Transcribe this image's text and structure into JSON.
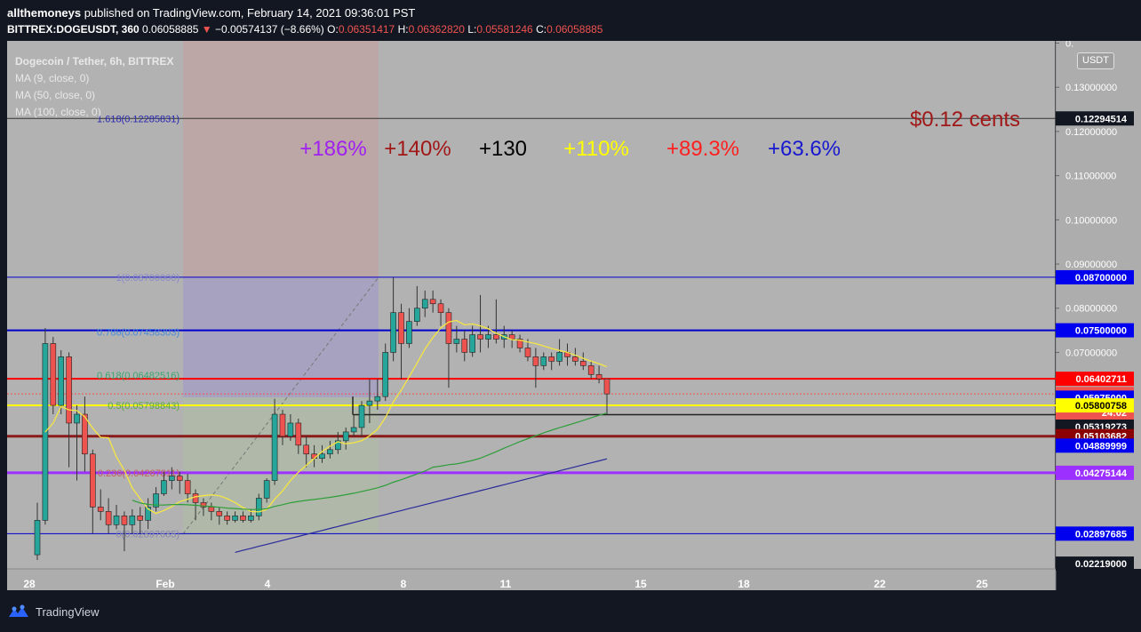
{
  "header": {
    "user": "allthemoneys",
    "publish_text": " published on TradingView.com, February 14, 2021 09:36:01 PST",
    "symbol": "BITTREX:DOGEUSDT, 360",
    "last": "0.06058885",
    "arrow": "▼",
    "change": "−0.00574137 (−8.66%)",
    "o_label": "O:",
    "o_value": "0.06351417",
    "h_label": "H:",
    "h_value": "0.06362820",
    "l_label": "L:",
    "l_value": "0.05581246",
    "c_label": "C:",
    "c_value": "0.06058885"
  },
  "legend": {
    "title": "Dogecoin / Tether, 6h, BITTREX",
    "ma9": "MA (9, close, 0)",
    "ma50": "MA (50, close, 0)",
    "ma100": "MA (100, close, 0)"
  },
  "currency_button": "USDT",
  "footer": {
    "brand": "TradingView"
  },
  "colors": {
    "background": "#b2b2b2",
    "up": "#26a69a",
    "down": "#ef5350",
    "ma9": "#f5e642",
    "ma50": "#2e9e3a",
    "ma100": "#2a2a9a"
  },
  "chart_data": {
    "type": "candlestick",
    "x_tick_labels": [
      "28",
      "Feb",
      "4",
      "8",
      "11",
      "15",
      "18",
      "22",
      "25"
    ],
    "y_tick_labels": [
      "0.",
      "0.13000000",
      "0.12000000",
      "0.11000000",
      "0.10000000",
      "0.09000000",
      "0.08000000",
      "0.07000000"
    ],
    "ylim": [
      0.021,
      0.1405
    ],
    "price_labels": [
      {
        "text": "0.12294514",
        "value": 0.12294514,
        "bg": "#131722",
        "fg": "#ffffff"
      },
      {
        "text": "0.08700000",
        "value": 0.087,
        "bg": "#0000ee",
        "fg": "#ffffff"
      },
      {
        "text": "0.07500000",
        "value": 0.075,
        "bg": "#0000ee",
        "fg": "#ffffff"
      },
      {
        "text": "0.06402711",
        "value": 0.06402711,
        "bg": "#ff0000",
        "fg": "#ffffff"
      },
      {
        "text": "0.06058885",
        "value": 0.06058885,
        "bg": "#ef5350",
        "fg": "#ffffff"
      },
      {
        "text": "24:02",
        "value": 0.0564,
        "bg": "#ef5350",
        "fg": "#ffffff"
      },
      {
        "text": "0.05975000",
        "value": 0.05975,
        "bg": "#0000ee",
        "fg": "#ffffff"
      },
      {
        "text": "0.05800758",
        "value": 0.05800758,
        "bg": "#ffff00",
        "fg": "#000000"
      },
      {
        "text": "0.05319273",
        "value": 0.05319273,
        "bg": "#131722",
        "fg": "#ffffff"
      },
      {
        "text": "0.05103682",
        "value": 0.05103682,
        "bg": "#8b0000",
        "fg": "#ffffff"
      },
      {
        "text": "0.04889999",
        "value": 0.04889999,
        "bg": "#0000ee",
        "fg": "#ffffff"
      },
      {
        "text": "0.04275144",
        "value": 0.04275144,
        "bg": "#9b30ff",
        "fg": "#ffffff"
      },
      {
        "text": "0.02897685",
        "value": 0.02897685,
        "bg": "#0000ee",
        "fg": "#ffffff"
      },
      {
        "text": "0.02219000",
        "value": 0.02219,
        "bg": "#131722",
        "fg": "#ffffff"
      }
    ],
    "horizontal_lines": [
      {
        "value": 0.12294514,
        "color": "#333333",
        "width": 1
      },
      {
        "value": 0.087,
        "color": "#0000cc",
        "width": 1
      },
      {
        "value": 0.075,
        "color": "#0000cc",
        "width": 2
      },
      {
        "value": 0.06402711,
        "color": "#ff0000",
        "width": 2
      },
      {
        "value": 0.05800758,
        "color": "#ffff00",
        "width": 2
      },
      {
        "value": 0.05103682,
        "color": "#8b1a1a",
        "width": 3
      },
      {
        "value": 0.04275144,
        "color": "#9b30ff",
        "width": 3
      },
      {
        "value": 0.02897685,
        "color": "#0000cc",
        "width": 1
      }
    ],
    "fib_labels": [
      {
        "text": "1.618(0.12285831)",
        "value": 0.12285831,
        "color": "#2a2ab0"
      },
      {
        "text": "1(0.08700000)",
        "value": 0.087,
        "color": "#8888cc"
      },
      {
        "text": "0.786(0.07458303)",
        "value": 0.07458303,
        "color": "#4a8ad8"
      },
      {
        "text": "0.618(0.06482516)",
        "value": 0.06482516,
        "color": "#3aa870"
      },
      {
        "text": "0.5(0.05798843)",
        "value": 0.05798843,
        "color": "#5aaa40"
      },
      {
        "text": "0.236(0.04267811)",
        "value": 0.04267811,
        "color": "#c06060"
      },
      {
        "text": "0(0.02897685)",
        "value": 0.02897685,
        "color": "#8888aa"
      }
    ],
    "percent_annotations": [
      {
        "text": "+186%",
        "color": "#a020f0"
      },
      {
        "text": "+140%",
        "color": "#a01818"
      },
      {
        "text": "+130",
        "color": "#000000"
      },
      {
        "text": "+110%",
        "color": "#ffff00"
      },
      {
        "text": "+89.3%",
        "color": "#ff2020"
      },
      {
        "text": "+63.6%",
        "color": "#1818d0"
      }
    ],
    "cents_annotation": {
      "text": "$0.12 cents",
      "color": "#a01818"
    },
    "candles": [
      [
        0.0242,
        0.032,
        0.023,
        0.036
      ],
      [
        0.032,
        0.072,
        0.031,
        0.0755
      ],
      [
        0.072,
        0.058,
        0.056,
        0.0735
      ],
      [
        0.058,
        0.069,
        0.056,
        0.0705
      ],
      [
        0.069,
        0.054,
        0.044,
        0.07
      ],
      [
        0.054,
        0.056,
        0.041,
        0.058
      ],
      [
        0.056,
        0.047,
        0.043,
        0.06
      ],
      [
        0.047,
        0.035,
        0.029,
        0.048
      ],
      [
        0.035,
        0.034,
        0.032,
        0.039
      ],
      [
        0.034,
        0.031,
        0.029,
        0.037
      ],
      [
        0.031,
        0.033,
        0.03,
        0.0355
      ],
      [
        0.033,
        0.031,
        0.025,
        0.034
      ],
      [
        0.031,
        0.033,
        0.029,
        0.0345
      ],
      [
        0.033,
        0.032,
        0.029,
        0.035
      ],
      [
        0.032,
        0.035,
        0.03,
        0.037
      ],
      [
        0.035,
        0.038,
        0.034,
        0.0395
      ],
      [
        0.038,
        0.041,
        0.0375,
        0.043
      ],
      [
        0.041,
        0.042,
        0.039,
        0.044
      ],
      [
        0.042,
        0.041,
        0.038,
        0.043
      ],
      [
        0.041,
        0.038,
        0.036,
        0.0425
      ],
      [
        0.038,
        0.036,
        0.032,
        0.039
      ],
      [
        0.036,
        0.035,
        0.033,
        0.037
      ],
      [
        0.035,
        0.034,
        0.032,
        0.036
      ],
      [
        0.034,
        0.033,
        0.031,
        0.035
      ],
      [
        0.033,
        0.032,
        0.031,
        0.034
      ],
      [
        0.032,
        0.033,
        0.0315,
        0.034
      ],
      [
        0.033,
        0.032,
        0.0315,
        0.034
      ],
      [
        0.032,
        0.033,
        0.0315,
        0.0345
      ],
      [
        0.033,
        0.037,
        0.032,
        0.038
      ],
      [
        0.037,
        0.041,
        0.036,
        0.0415
      ],
      [
        0.041,
        0.056,
        0.04,
        0.0595
      ],
      [
        0.056,
        0.051,
        0.049,
        0.057
      ],
      [
        0.051,
        0.054,
        0.05,
        0.056
      ],
      [
        0.054,
        0.049,
        0.047,
        0.055
      ],
      [
        0.049,
        0.047,
        0.044,
        0.051
      ],
      [
        0.047,
        0.046,
        0.044,
        0.049
      ],
      [
        0.046,
        0.047,
        0.045,
        0.049
      ],
      [
        0.047,
        0.048,
        0.046,
        0.05
      ],
      [
        0.048,
        0.05,
        0.047,
        0.052
      ],
      [
        0.05,
        0.052,
        0.048,
        0.053
      ],
      [
        0.052,
        0.053,
        0.051,
        0.056
      ],
      [
        0.053,
        0.058,
        0.051,
        0.059
      ],
      [
        0.058,
        0.059,
        0.054,
        0.064
      ],
      [
        0.059,
        0.06,
        0.057,
        0.064
      ],
      [
        0.06,
        0.07,
        0.059,
        0.072
      ],
      [
        0.07,
        0.079,
        0.068,
        0.087
      ],
      [
        0.079,
        0.072,
        0.064,
        0.081
      ],
      [
        0.072,
        0.077,
        0.071,
        0.08
      ],
      [
        0.077,
        0.08,
        0.076,
        0.085
      ],
      [
        0.08,
        0.082,
        0.078,
        0.084
      ],
      [
        0.082,
        0.081,
        0.079,
        0.084
      ],
      [
        0.081,
        0.079,
        0.076,
        0.082
      ],
      [
        0.079,
        0.072,
        0.062,
        0.08
      ],
      [
        0.072,
        0.073,
        0.07,
        0.076
      ],
      [
        0.073,
        0.07,
        0.068,
        0.075
      ],
      [
        0.07,
        0.074,
        0.069,
        0.076
      ],
      [
        0.074,
        0.073,
        0.07,
        0.083
      ],
      [
        0.073,
        0.074,
        0.071,
        0.076
      ],
      [
        0.074,
        0.073,
        0.072,
        0.082
      ],
      [
        0.073,
        0.074,
        0.071,
        0.076
      ],
      [
        0.074,
        0.073,
        0.071,
        0.075
      ],
      [
        0.073,
        0.071,
        0.07,
        0.074
      ],
      [
        0.071,
        0.069,
        0.068,
        0.073
      ],
      [
        0.069,
        0.067,
        0.062,
        0.071
      ],
      [
        0.067,
        0.069,
        0.066,
        0.07
      ],
      [
        0.069,
        0.068,
        0.066,
        0.07
      ],
      [
        0.068,
        0.07,
        0.067,
        0.073
      ],
      [
        0.07,
        0.069,
        0.067,
        0.072
      ],
      [
        0.069,
        0.068,
        0.067,
        0.071
      ],
      [
        0.068,
        0.067,
        0.066,
        0.07
      ],
      [
        0.067,
        0.065,
        0.064,
        0.068
      ],
      [
        0.065,
        0.064,
        0.063,
        0.067
      ],
      [
        0.064,
        0.0606,
        0.0558,
        0.064
      ]
    ]
  }
}
